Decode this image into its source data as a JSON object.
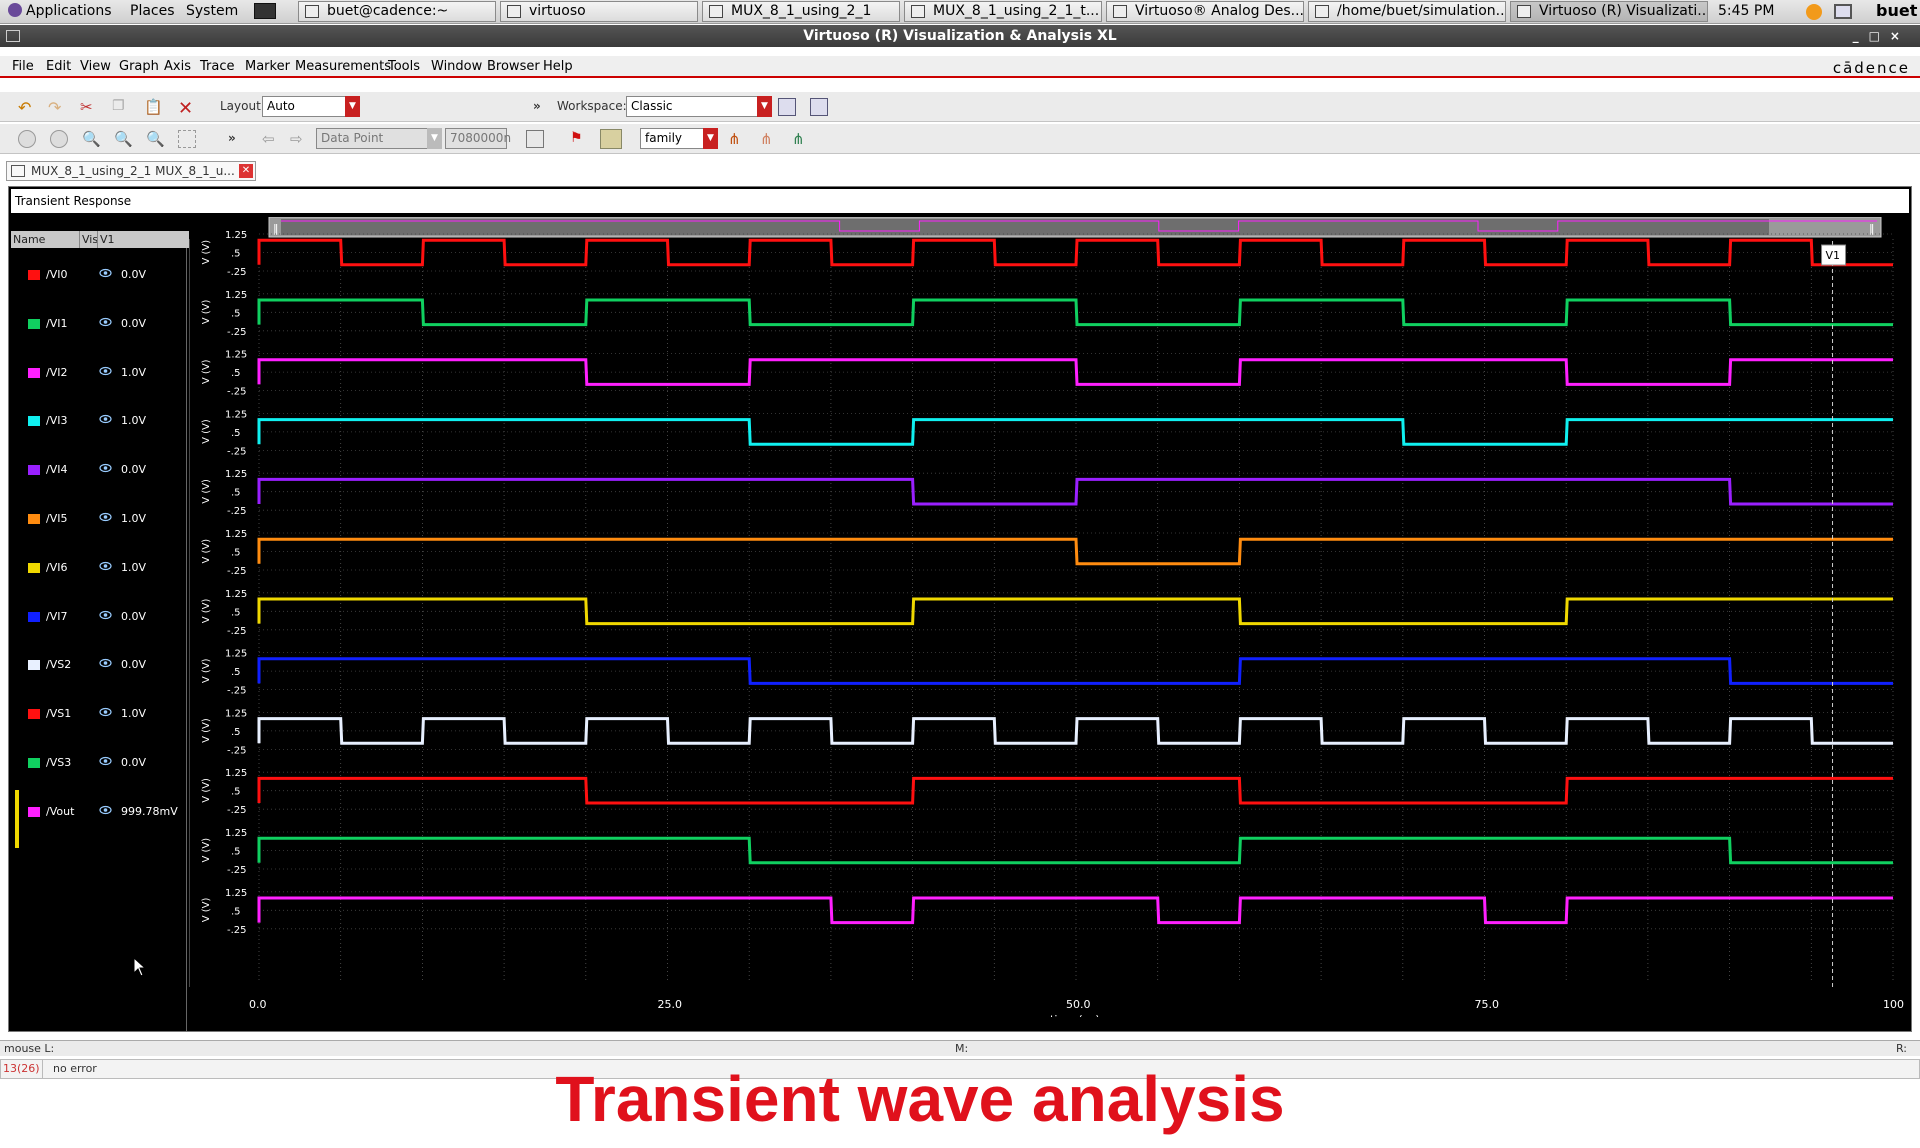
{
  "taskbar": {
    "menus": [
      "Applications",
      "Places",
      "System"
    ],
    "tasks": [
      "buet@cadence:~",
      "virtuoso",
      "MUX_8_1_using_2_1",
      "MUX_8_1_using_2_1_t...",
      "Virtuoso® Analog Des...",
      "/home/buet/simulation...",
      "Virtuoso (R) Visualizati..."
    ],
    "clock": "5:45 PM",
    "user": "buet"
  },
  "window": {
    "title": "Virtuoso (R) Visualization & Analysis XL",
    "brand": "cādence"
  },
  "menubar": [
    "File",
    "Edit",
    "View",
    "Graph",
    "Axis",
    "Trace",
    "Marker",
    "Measurements",
    "Tools",
    "Window",
    "Browser",
    "Help"
  ],
  "toolbar1": {
    "layout_label": "Layout:",
    "layout_value": "Auto",
    "workspace_label": "Workspace:",
    "workspace_value": "Classic",
    "overflow": "»"
  },
  "toolbar2": {
    "point_mode": "Data Point",
    "point_value": "7080000n",
    "family_value": "family",
    "overflow": "»"
  },
  "doc_tab": {
    "label": "MUX_8_1_using_2_1 MUX_8_1_u..."
  },
  "plot": {
    "title": "Transient Response",
    "legend_header": {
      "name": "Name",
      "vis": "Vis",
      "marker": "V1"
    },
    "marker_label": "V1",
    "ylabel": "V (V)",
    "xlabel": "time (ns)"
  },
  "chart_data": {
    "type": "line",
    "xlabel": "time (ns)",
    "ylabel": "V (V)",
    "xlim": [
      0,
      100
    ],
    "x_ticks": [
      "0.0",
      "25.0",
      "50.0",
      "75.0",
      "100"
    ],
    "ylim": [
      -0.25,
      1.25
    ],
    "y_ticks": [
      "1.25",
      ".5",
      "-.25"
    ],
    "marker": {
      "name": "V1",
      "x": 96.3
    },
    "series": [
      {
        "name": "/VI0",
        "color": "#ff1010",
        "value_at_marker": "0.0V",
        "period_ns": 10,
        "start_high": true
      },
      {
        "name": "/VI1",
        "color": "#10d060",
        "value_at_marker": "0.0V",
        "period_ns": 20,
        "start_high": true
      },
      {
        "name": "/VI2",
        "color": "#ff20ff",
        "value_at_marker": "1.0V",
        "transitions_ns": [
          0,
          20,
          30,
          50,
          60,
          80,
          90
        ],
        "start_high": true
      },
      {
        "name": "/VI3",
        "color": "#10f0f0",
        "value_at_marker": "1.0V",
        "transitions_ns": [
          0,
          30,
          40,
          70,
          80
        ],
        "start_high": true
      },
      {
        "name": "/VI4",
        "color": "#9a20ff",
        "value_at_marker": "0.0V",
        "transitions_ns": [
          0,
          40,
          50,
          90
        ],
        "start_high": true
      },
      {
        "name": "/VI5",
        "color": "#ff8c10",
        "value_at_marker": "1.0V",
        "transitions_ns": [
          0,
          50,
          60
        ],
        "start_high": true
      },
      {
        "name": "/VI6",
        "color": "#f0d800",
        "value_at_marker": "1.0V",
        "transitions_ns": [
          0,
          20,
          40,
          60,
          80
        ],
        "start_high": true
      },
      {
        "name": "/VI7",
        "color": "#1020ff",
        "value_at_marker": "0.0V",
        "transitions_ns": [
          0,
          30,
          60,
          90
        ],
        "start_high": true
      },
      {
        "name": "/VS2",
        "color": "#e8f0ff",
        "value_at_marker": "0.0V",
        "period_ns": 10,
        "start_high": true
      },
      {
        "name": "/VS1",
        "color": "#ff1010",
        "value_at_marker": "1.0V",
        "period_ns": 40,
        "start_high": true
      },
      {
        "name": "/VS3",
        "color": "#10d060",
        "value_at_marker": "0.0V",
        "transitions_ns": [
          0,
          30,
          60,
          90
        ],
        "start_high": true
      },
      {
        "name": "/Vout",
        "color": "#ff20ff",
        "value_at_marker": "999.78mV",
        "transitions_ns": [
          0,
          35,
          40,
          55,
          60,
          75,
          80
        ],
        "start_high": true
      }
    ]
  },
  "status": {
    "mouse": "mouse L:",
    "middle": "M:",
    "right": "R:"
  },
  "messages": {
    "count": "13(26)",
    "text": "no error"
  },
  "caption": "Transient wave analysis"
}
